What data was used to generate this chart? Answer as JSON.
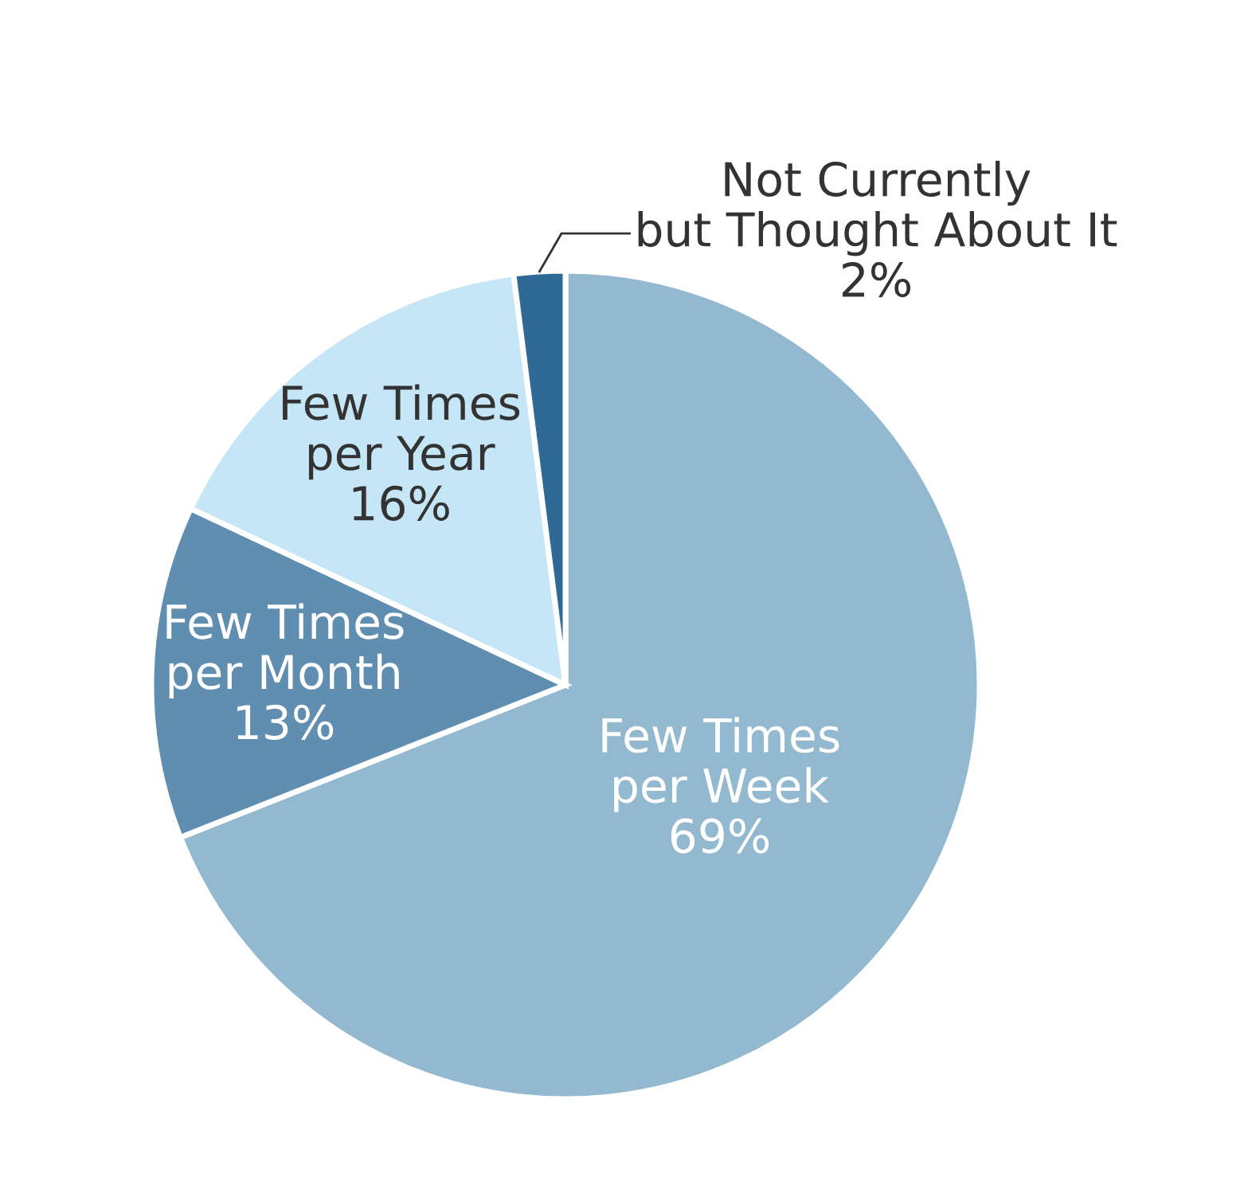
{
  "chart_data": {
    "type": "pie",
    "categories": [
      "Few Times\nper Week",
      "Few Times\nper Month",
      "Few Times\nper Year",
      "Not Currently\nbut Thought About It"
    ],
    "values": [
      69,
      13,
      16,
      2
    ],
    "value_labels": [
      "69%",
      "13%",
      "16%",
      "2%"
    ],
    "colors": [
      "#93b9d0",
      "#5f8eb1",
      "#c5e6f7",
      "#2f6a96"
    ],
    "legend": false
  }
}
